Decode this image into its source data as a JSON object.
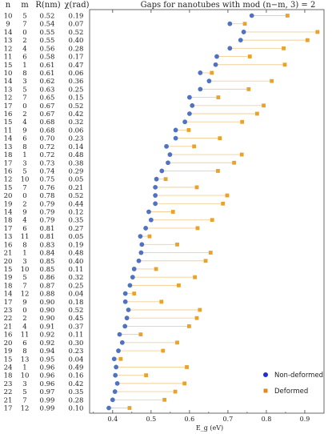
{
  "chart_data": {
    "type": "scatter",
    "title": "Gaps for nanotubes with mod (n−m, 3) = 2",
    "columns": [
      "n",
      "m",
      "R(nm)",
      "χ(rad)"
    ],
    "rows": [
      [
        "10",
        "5",
        "0.52",
        "0.19"
      ],
      [
        "9",
        "7",
        "0.54",
        "0.07"
      ],
      [
        "14",
        "0",
        "0.55",
        "0.52"
      ],
      [
        "13",
        "2",
        "0.55",
        "0.40"
      ],
      [
        "12",
        "4",
        "0.56",
        "0.28"
      ],
      [
        "11",
        "6",
        "0.58",
        "0.17"
      ],
      [
        "15",
        "1",
        "0.61",
        "0.47"
      ],
      [
        "10",
        "8",
        "0.61",
        "0.06"
      ],
      [
        "14",
        "3",
        "0.62",
        "0.36"
      ],
      [
        "13",
        "5",
        "0.63",
        "0.25"
      ],
      [
        "12",
        "7",
        "0.65",
        "0.15"
      ],
      [
        "17",
        "0",
        "0.67",
        "0.52"
      ],
      [
        "16",
        "2",
        "0.67",
        "0.42"
      ],
      [
        "15",
        "4",
        "0.68",
        "0.32"
      ],
      [
        "11",
        "9",
        "0.68",
        "0.06"
      ],
      [
        "14",
        "6",
        "0.70",
        "0.23"
      ],
      [
        "13",
        "8",
        "0.72",
        "0.14"
      ],
      [
        "18",
        "1",
        "0.72",
        "0.48"
      ],
      [
        "17",
        "3",
        "0.73",
        "0.38"
      ],
      [
        "16",
        "5",
        "0.74",
        "0.29"
      ],
      [
        "12",
        "10",
        "0.75",
        "0.05"
      ],
      [
        "15",
        "7",
        "0.76",
        "0.21"
      ],
      [
        "20",
        "0",
        "0.78",
        "0.52"
      ],
      [
        "19",
        "2",
        "0.79",
        "0.44"
      ],
      [
        "14",
        "9",
        "0.79",
        "0.12"
      ],
      [
        "18",
        "4",
        "0.79",
        "0.35"
      ],
      [
        "17",
        "6",
        "0.81",
        "0.27"
      ],
      [
        "13",
        "11",
        "0.81",
        "0.05"
      ],
      [
        "16",
        "8",
        "0.83",
        "0.19"
      ],
      [
        "21",
        "1",
        "0.84",
        "0.48"
      ],
      [
        "20",
        "3",
        "0.85",
        "0.40"
      ],
      [
        "15",
        "10",
        "0.85",
        "0.11"
      ],
      [
        "19",
        "5",
        "0.86",
        "0.32"
      ],
      [
        "18",
        "7",
        "0.87",
        "0.25"
      ],
      [
        "14",
        "12",
        "0.88",
        "0.04"
      ],
      [
        "17",
        "9",
        "0.90",
        "0.18"
      ],
      [
        "23",
        "0",
        "0.90",
        "0.52"
      ],
      [
        "22",
        "2",
        "0.90",
        "0.45"
      ],
      [
        "21",
        "4",
        "0.91",
        "0.37"
      ],
      [
        "16",
        "11",
        "0.92",
        "0.11"
      ],
      [
        "20",
        "6",
        "0.92",
        "0.30"
      ],
      [
        "19",
        "8",
        "0.94",
        "0.23"
      ],
      [
        "15",
        "13",
        "0.95",
        "0.04"
      ],
      [
        "24",
        "1",
        "0.96",
        "0.49"
      ],
      [
        "18",
        "10",
        "0.96",
        "0.16"
      ],
      [
        "23",
        "3",
        "0.96",
        "0.42"
      ],
      [
        "22",
        "5",
        "0.97",
        "0.35"
      ],
      [
        "21",
        "7",
        "0.99",
        "0.28"
      ],
      [
        "17",
        "12",
        "0.99",
        "0.10"
      ]
    ],
    "series": [
      {
        "name": "Non-deformed",
        "color": "#4f73c0",
        "marker": "circle",
        "values": [
          0.762,
          0.705,
          0.741,
          0.733,
          0.705,
          0.671,
          0.668,
          0.628,
          0.651,
          0.628,
          0.6,
          0.607,
          0.6,
          0.588,
          0.564,
          0.564,
          0.54,
          0.549,
          0.544,
          0.528,
          0.514,
          0.511,
          0.511,
          0.511,
          0.494,
          0.5,
          0.486,
          0.472,
          0.476,
          0.474,
          0.468,
          0.456,
          0.452,
          0.445,
          0.433,
          0.433,
          0.441,
          0.437,
          0.432,
          0.418,
          0.425,
          0.415,
          0.404,
          0.409,
          0.407,
          0.412,
          0.406,
          0.4,
          0.39
        ]
      },
      {
        "name": "Deformed",
        "color": "#e9a32b",
        "marker": "square",
        "values": [
          0.855,
          0.744,
          0.933,
          0.907,
          0.845,
          0.757,
          0.848,
          0.658,
          0.814,
          0.754,
          0.675,
          0.793,
          0.776,
          0.737,
          0.598,
          0.679,
          0.612,
          0.736,
          0.716,
          0.674,
          0.538,
          0.619,
          0.698,
          0.687,
          0.557,
          0.659,
          0.621,
          0.496,
          0.568,
          0.655,
          0.642,
          0.513,
          0.614,
          0.572,
          0.456,
          0.527,
          0.627,
          0.619,
          0.599,
          0.473,
          0.568,
          0.531,
          0.421,
          0.593,
          0.487,
          0.587,
          0.563,
          0.535,
          0.444
        ]
      }
    ],
    "xlabel": "E_g (eV)",
    "xlim": [
      0.34,
      0.95
    ],
    "xticks": [
      "0.4",
      "0.5",
      "0.6",
      "0.7",
      "0.8",
      "0.9"
    ],
    "grid": false,
    "legend": "bottom-right"
  }
}
